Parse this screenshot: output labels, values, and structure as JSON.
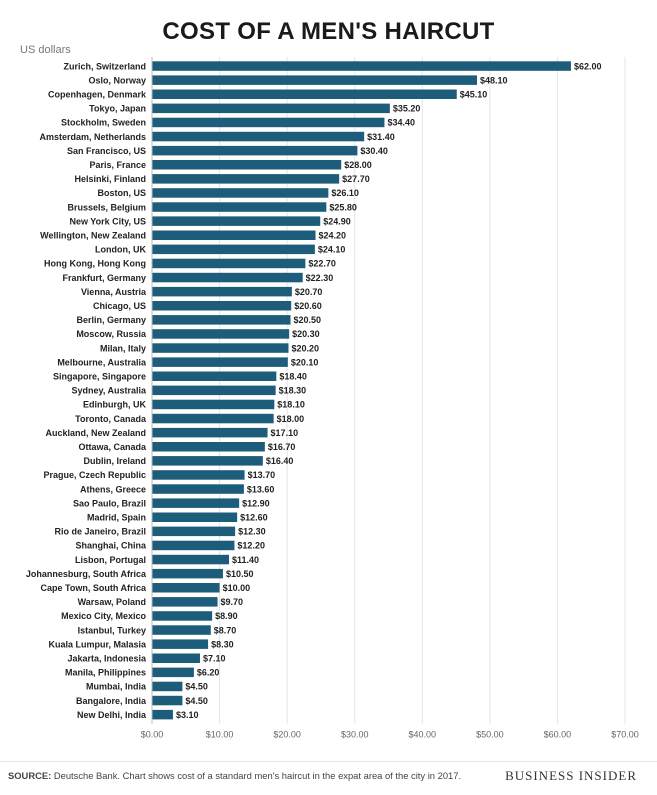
{
  "header": {
    "title": "COST OF A MEN'S HAIRCUT",
    "units_label": "US dollars"
  },
  "footer": {
    "source_label": "SOURCE:",
    "source_text": " Deutsche Bank. Chart shows cost of a standard men's haircut in the expat area of the city in 2017.",
    "brand": "BUSINESS INSIDER"
  },
  "colors": {
    "bar": "#1d5c7a",
    "grid": "#e4e4e4",
    "text": "#222222"
  },
  "chart_data": {
    "type": "bar",
    "orientation": "horizontal",
    "title": "COST OF A MEN'S HAIRCUT",
    "xlabel": "US dollars",
    "ylabel": "",
    "xlim": [
      0,
      70
    ],
    "xticks": [
      0,
      10,
      20,
      30,
      40,
      50,
      60,
      70
    ],
    "xtick_labels": [
      "$0.00",
      "$10.00",
      "$20.00",
      "$30.00",
      "$40.00",
      "$50.00",
      "$60.00",
      "$70.00"
    ],
    "grid": true,
    "value_labels": true,
    "categories": [
      "Zurich, Switzerland",
      "Oslo, Norway",
      "Copenhagen, Denmark",
      "Tokyo, Japan",
      "Stockholm, Sweden",
      "Amsterdam, Netherlands",
      "San Francisco, US",
      "Paris, France",
      "Helsinki, Finland",
      "Boston, US",
      "Brussels, Belgium",
      "New York City, US",
      "Wellington, New Zealand",
      "London, UK",
      "Hong Kong, Hong Kong",
      "Frankfurt, Germany",
      "Vienna, Austria",
      "Chicago, US",
      "Berlin, Germany",
      "Moscow, Russia",
      "Milan, Italy",
      "Melbourne, Australia",
      "Singapore, Singapore",
      "Sydney, Australia",
      "Edinburgh, UK",
      "Toronto, Canada",
      "Auckland, New Zealand",
      "Ottawa, Canada",
      "Dublin, Ireland",
      "Prague, Czech Republic",
      "Athens, Greece",
      "Sao Paulo, Brazil",
      "Madrid, Spain",
      "Rio de Janeiro, Brazil",
      "Shanghai, China",
      "Lisbon, Portugal",
      "Johannesburg, South Africa",
      "Cape Town, South Africa",
      "Warsaw, Poland",
      "Mexico City, Mexico",
      "Istanbul, Turkey",
      "Kuala Lumpur, Malasia",
      "Jakarta, Indonesia",
      "Manila, Philippines",
      "Mumbai, India",
      "Bangalore, India",
      "New Delhi, India"
    ],
    "values": [
      62.0,
      48.1,
      45.1,
      35.2,
      34.4,
      31.4,
      30.4,
      28.0,
      27.7,
      26.1,
      25.8,
      24.9,
      24.2,
      24.1,
      22.7,
      22.3,
      20.7,
      20.6,
      20.5,
      20.3,
      20.2,
      20.1,
      18.4,
      18.3,
      18.1,
      18.0,
      17.1,
      16.7,
      16.4,
      13.7,
      13.6,
      12.9,
      12.6,
      12.3,
      12.2,
      11.4,
      10.5,
      10.0,
      9.7,
      8.9,
      8.7,
      8.3,
      7.1,
      6.2,
      4.5,
      4.5,
      3.1
    ],
    "value_label_text": [
      "$62.00",
      "$48.10",
      "$45.10",
      "$35.20",
      "$34.40",
      "$31.40",
      "$30.40",
      "$28.00",
      "$27.70",
      "$26.10",
      "$25.80",
      "$24.90",
      "$24.20",
      "$24.10",
      "$22.70",
      "$22.30",
      "$20.70",
      "$20.60",
      "$20.50",
      "$20.30",
      "$20.20",
      "$20.10",
      "$18.40",
      "$18.30",
      "$18.10",
      "$18.00",
      "$17.10",
      "$16.70",
      "$16.40",
      "$13.70",
      "$13.60",
      "$12.90",
      "$12.60",
      "$12.30",
      "$12.20",
      "$11.40",
      "$10.50",
      "$10.00",
      "$9.70",
      "$8.90",
      "$8.70",
      "$8.30",
      "$7.10",
      "$6.20",
      "$4.50",
      "$4.50",
      "$3.10"
    ]
  }
}
